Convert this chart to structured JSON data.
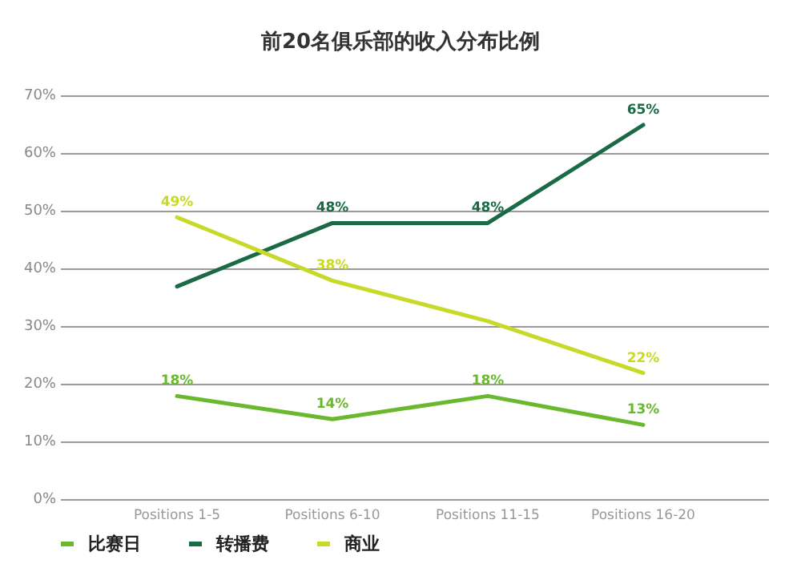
{
  "chart_data": {
    "type": "line",
    "title": "前20名俱乐部的收入分布比例",
    "categories": [
      "Positions 1-5",
      "Positions 6-10",
      "Positions 11-15",
      "Positions 16-20"
    ],
    "series": [
      {
        "name": "比赛日",
        "color": "#6ab82e",
        "values": [
          18,
          14,
          18,
          13
        ],
        "value_labels": [
          "18%",
          "14%",
          "18%",
          "13%"
        ]
      },
      {
        "name": "转播费",
        "color": "#1a6b45",
        "values": [
          37,
          48,
          48,
          65
        ],
        "value_labels": [
          null,
          "48%",
          "48%",
          "65%"
        ]
      },
      {
        "name": "商业",
        "color": "#c8d92a",
        "values": [
          49,
          38,
          31,
          22
        ],
        "value_labels": [
          "49%",
          "38%",
          null,
          "22%"
        ]
      }
    ],
    "ylim": [
      0,
      70
    ],
    "yticks": [
      {
        "value": 0,
        "label": "0%"
      },
      {
        "value": 10,
        "label": "10%"
      },
      {
        "value": 20,
        "label": "20%"
      },
      {
        "value": 30,
        "label": "30%"
      },
      {
        "value": 40,
        "label": "40%"
      },
      {
        "value": 50,
        "label": "50%"
      },
      {
        "value": 60,
        "label": "60%"
      },
      {
        "value": 70,
        "label": "70%"
      }
    ],
    "grid": "y",
    "legend": "bottom",
    "marker": "none",
    "line_style": "solid"
  }
}
